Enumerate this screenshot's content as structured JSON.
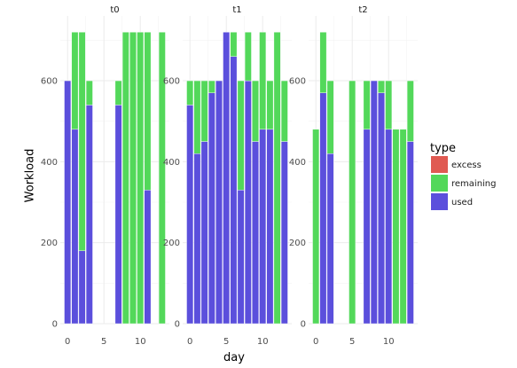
{
  "chart_data": {
    "type": "bar",
    "stacked": true,
    "facet_variable": "t",
    "facets": [
      "t0",
      "t1",
      "t2"
    ],
    "xlabel": "day",
    "ylabel": "Workload",
    "x_ticks": [
      0,
      5,
      10
    ],
    "y_ticks": [
      0,
      200,
      400,
      600
    ],
    "xlim": [
      -1,
      14
    ],
    "ylim": [
      0,
      760
    ],
    "grid": true,
    "legend": {
      "title": "type",
      "position": "right",
      "entries": [
        {
          "name": "excess",
          "color": "#e05a52"
        },
        {
          "name": "remaining",
          "color": "#53d85a"
        },
        {
          "name": "used",
          "color": "#5b4fdc"
        }
      ]
    },
    "panels": [
      {
        "facet": "t0",
        "days": [
          0,
          1,
          2,
          3,
          4,
          5,
          6,
          7,
          8,
          9,
          10,
          11,
          12,
          13
        ],
        "used": [
          600,
          480,
          180,
          540,
          0,
          0,
          0,
          540,
          0,
          0,
          0,
          330,
          0,
          0
        ],
        "remaining": [
          0,
          240,
          540,
          60,
          0,
          0,
          0,
          60,
          720,
          720,
          720,
          390,
          0,
          720
        ],
        "excess": [
          0,
          0,
          0,
          0,
          0,
          0,
          0,
          0,
          0,
          0,
          0,
          0,
          0,
          0
        ]
      },
      {
        "facet": "t1",
        "days": [
          0,
          1,
          2,
          3,
          4,
          5,
          6,
          7,
          8,
          9,
          10,
          11,
          12,
          13
        ],
        "used": [
          540,
          420,
          450,
          570,
          600,
          720,
          660,
          330,
          600,
          450,
          480,
          480,
          0,
          450
        ],
        "remaining": [
          60,
          180,
          150,
          30,
          0,
          0,
          60,
          270,
          120,
          150,
          240,
          120,
          720,
          150
        ],
        "excess": [
          0,
          0,
          0,
          0,
          0,
          0,
          0,
          0,
          0,
          0,
          0,
          0,
          0,
          0
        ]
      },
      {
        "facet": "t2",
        "days": [
          0,
          1,
          2,
          3,
          4,
          5,
          6,
          7,
          8,
          9,
          10,
          11,
          12,
          13
        ],
        "used": [
          0,
          570,
          420,
          0,
          0,
          0,
          0,
          480,
          600,
          570,
          480,
          0,
          0,
          450
        ],
        "remaining": [
          480,
          150,
          180,
          0,
          0,
          600,
          0,
          120,
          0,
          30,
          120,
          480,
          480,
          150
        ],
        "excess": [
          0,
          0,
          0,
          0,
          0,
          0,
          0,
          0,
          0,
          0,
          0,
          0,
          0,
          0
        ]
      }
    ]
  }
}
